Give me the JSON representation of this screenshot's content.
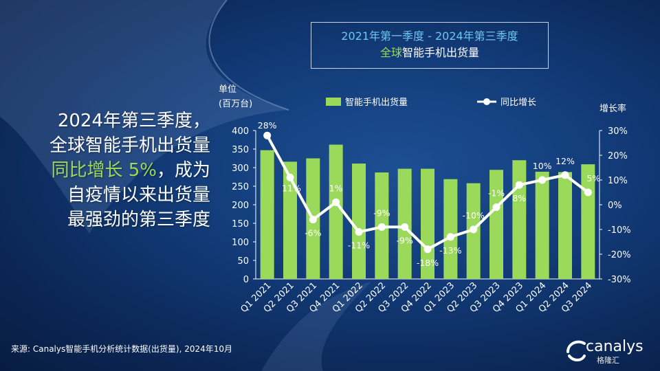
{
  "title_box": {
    "line1": "2021年第一季度 -  2024年第三季度",
    "line2_highlight": "全球",
    "line2_rest": "智能手机出货量"
  },
  "headline": {
    "line1": "2024年第三季度，",
    "line2": "全球智能手机出货量",
    "line3_highlight": "同比增长 5%",
    "line3_rest": "，成为",
    "line4": "自疫情以来出货量",
    "line5": "最强劲的第三季度"
  },
  "source": "来源: Canalys智能手机分析统计数据(出货量), 2024年10月",
  "logo_text": "canalys",
  "watermark_text": "格隆汇",
  "colors": {
    "bar": "#9bd95a",
    "line": "#ffffff",
    "highlight": "#9bd95a",
    "title_cyan": "#6fc6f0"
  },
  "chart_data": {
    "type": "bar",
    "categories": [
      "Q1 2021",
      "Q2 2021",
      "Q3 2021",
      "Q4 2021",
      "Q1 2022",
      "Q2 2022",
      "Q3 2022",
      "Q4 2022",
      "Q1 2023",
      "Q2 2023",
      "Q3 2023",
      "Q4 2023",
      "Q1 2024",
      "Q2 2024",
      "Q3 2024"
    ],
    "series": [
      {
        "name": "智能手机出货量",
        "type": "bar",
        "axis": "left",
        "values": [
          347,
          316,
          325,
          362,
          311,
          287,
          297,
          297,
          269,
          258,
          294,
          320,
          289,
          288,
          309
        ]
      },
      {
        "name": "同比增长",
        "type": "line",
        "axis": "right",
        "values": [
          28,
          11,
          -6,
          1,
          -11,
          -9,
          -9,
          -18,
          -13,
          -10,
          -1,
          8,
          10,
          12,
          5
        ],
        "labels": [
          "28%",
          "11%",
          "-6%",
          "1%",
          "-11%",
          "-9%",
          "-9%",
          "-18%",
          "-13%",
          "-10%",
          "-1%",
          "8%",
          "10%",
          "12%",
          "5%"
        ]
      }
    ],
    "ylabel_left_line1": "单位",
    "ylabel_left_line2": "(百万台)",
    "ylabel_right": "增长率",
    "yleft_ticks": [
      "0",
      "50",
      "100",
      "150",
      "200",
      "250",
      "300",
      "350",
      "400"
    ],
    "yleft_range": [
      0,
      400
    ],
    "yright_ticks": [
      "-30%",
      "-20%",
      "-10%",
      "0%",
      "10%",
      "20%",
      "30%"
    ],
    "yright_range": [
      -30,
      30
    ],
    "legend_position": "top"
  }
}
